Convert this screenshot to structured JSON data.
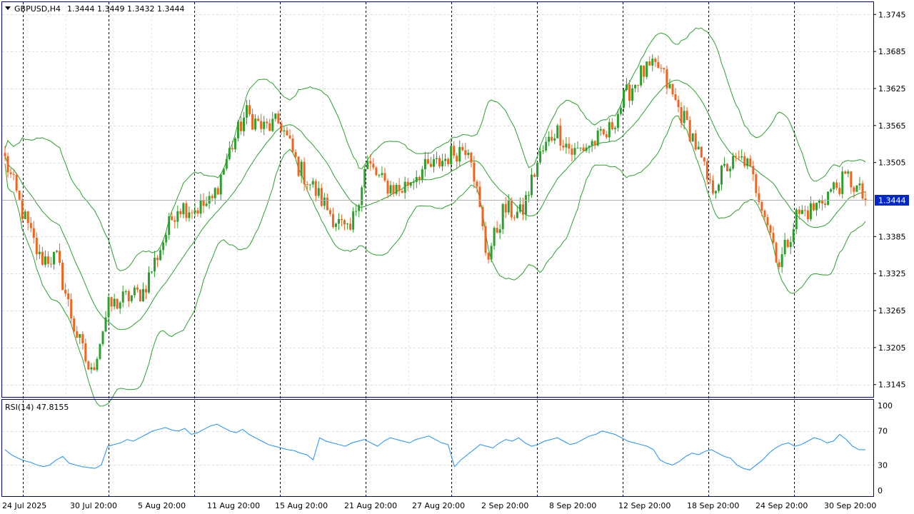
{
  "chart_data": {
    "type": "candlestick",
    "title": "GBPUSD,H4",
    "ohlc_text": "1.3444 1.3449 1.3432 1.3444",
    "symbol": "GBPUSD",
    "timeframe": "H4",
    "current_price": "1.3444",
    "ylim": [
      1.3125,
      1.3765
    ],
    "y_ticks": [
      "1.3745",
      "1.3685",
      "1.3625",
      "1.3565",
      "1.3505",
      "1.3444",
      "1.3385",
      "1.3325",
      "1.3265",
      "1.3205",
      "1.3145"
    ],
    "x_ticks": [
      "24 Jul 2025",
      "30 Jul 20:00",
      "5 Aug 20:00",
      "11 Aug 20:00",
      "15 Aug 20:00",
      "21 Aug 20:00",
      "27 Aug 20:00",
      "2 Sep 20:00",
      "8 Sep 20:00",
      "12 Sep 20:00",
      "18 Sep 20:00",
      "24 Sep 20:00",
      "30 Sep 20:00"
    ],
    "close_series": [
      [
        "24 Jul 2025",
        1.351
      ],
      [
        "25 Jul",
        1.3425
      ],
      [
        "28 Jul",
        1.335
      ],
      [
        "29 Jul",
        1.335
      ],
      [
        "30 Jul",
        1.324
      ],
      [
        "31 Jul",
        1.316
      ],
      [
        "1 Aug",
        1.327
      ],
      [
        "4 Aug",
        1.3285
      ],
      [
        "5 Aug",
        1.3295
      ],
      [
        "6 Aug",
        1.3365
      ],
      [
        "7 Aug",
        1.3435
      ],
      [
        "8 Aug",
        1.343
      ],
      [
        "11 Aug",
        1.344
      ],
      [
        "12 Aug",
        1.352
      ],
      [
        "13 Aug",
        1.3585
      ],
      [
        "14 Aug",
        1.356
      ],
      [
        "15 Aug",
        1.357
      ],
      [
        "18 Aug",
        1.35
      ],
      [
        "19 Aug",
        1.346
      ],
      [
        "20 Aug",
        1.342
      ],
      [
        "21 Aug",
        1.3385
      ],
      [
        "22 Aug",
        1.3505
      ],
      [
        "25 Aug",
        1.347
      ],
      [
        "26 Aug",
        1.346
      ],
      [
        "27 Aug",
        1.349
      ],
      [
        "28 Aug",
        1.35
      ],
      [
        "29 Aug",
        1.352
      ],
      [
        "1 Sep",
        1.3535
      ],
      [
        "2 Sep",
        1.335
      ],
      [
        "3 Sep",
        1.343
      ],
      [
        "4 Sep",
        1.342
      ],
      [
        "5 Sep",
        1.351
      ],
      [
        "8 Sep",
        1.356
      ],
      [
        "9 Sep",
        1.352
      ],
      [
        "10 Sep",
        1.3535
      ],
      [
        "11 Sep",
        1.355
      ],
      [
        "12 Sep",
        1.361
      ],
      [
        "15 Sep",
        1.365
      ],
      [
        "16 Sep",
        1.366
      ],
      [
        "17 Sep",
        1.36
      ],
      [
        "18 Sep",
        1.3545
      ],
      [
        "19 Sep",
        1.346
      ],
      [
        "22 Sep",
        1.35
      ],
      [
        "23 Sep",
        1.351
      ],
      [
        "24 Sep",
        1.344
      ],
      [
        "25 Sep",
        1.334
      ],
      [
        "26 Sep",
        1.342
      ],
      [
        "29 Sep",
        1.343
      ],
      [
        "30 Sep",
        1.346
      ],
      [
        "1 Oct",
        1.348
      ],
      [
        "2 Oct",
        1.3444
      ]
    ],
    "indicators": {
      "bollinger_bands": "Bollinger Bands (green lines)"
    },
    "rsi": {
      "label": "RSI(14) 47.8155",
      "period": 14,
      "value": 47.8155,
      "ylim": [
        0,
        100
      ],
      "y_ticks": [
        "100",
        "70",
        "30",
        "0"
      ],
      "values": [
        48,
        42,
        38,
        35,
        33,
        30,
        28,
        30,
        36,
        40,
        32,
        30,
        28,
        27,
        26,
        30,
        52,
        54,
        56,
        60,
        58,
        62,
        66,
        70,
        72,
        74,
        71,
        70,
        73,
        66,
        68,
        72,
        76,
        78,
        74,
        70,
        68,
        72,
        66,
        62,
        58,
        54,
        52,
        50,
        48,
        47,
        44,
        42,
        36,
        62,
        58,
        56,
        54,
        52,
        56,
        58,
        60,
        56,
        52,
        58,
        62,
        60,
        58,
        56,
        60,
        62,
        64,
        60,
        56,
        54,
        28,
        36,
        42,
        48,
        54,
        52,
        50,
        56,
        60,
        58,
        62,
        56,
        52,
        54,
        58,
        60,
        62,
        58,
        54,
        56,
        60,
        64,
        66,
        70,
        68,
        66,
        62,
        58,
        56,
        54,
        52,
        48,
        36,
        32,
        30,
        34,
        40,
        44,
        42,
        46,
        48,
        44,
        40,
        38,
        30,
        26,
        24,
        30,
        36,
        44,
        50,
        54,
        56,
        52,
        54,
        58,
        62,
        60,
        56,
        58,
        66,
        60,
        52,
        48,
        48
      ]
    },
    "colors": {
      "bull": "#2ca02c",
      "bear": "#f0641e",
      "bands": "#2ca02c",
      "rsi_line": "#1e90ff",
      "price_label_bg": "#0028c8",
      "frame": "#000080"
    },
    "grid": true
  }
}
